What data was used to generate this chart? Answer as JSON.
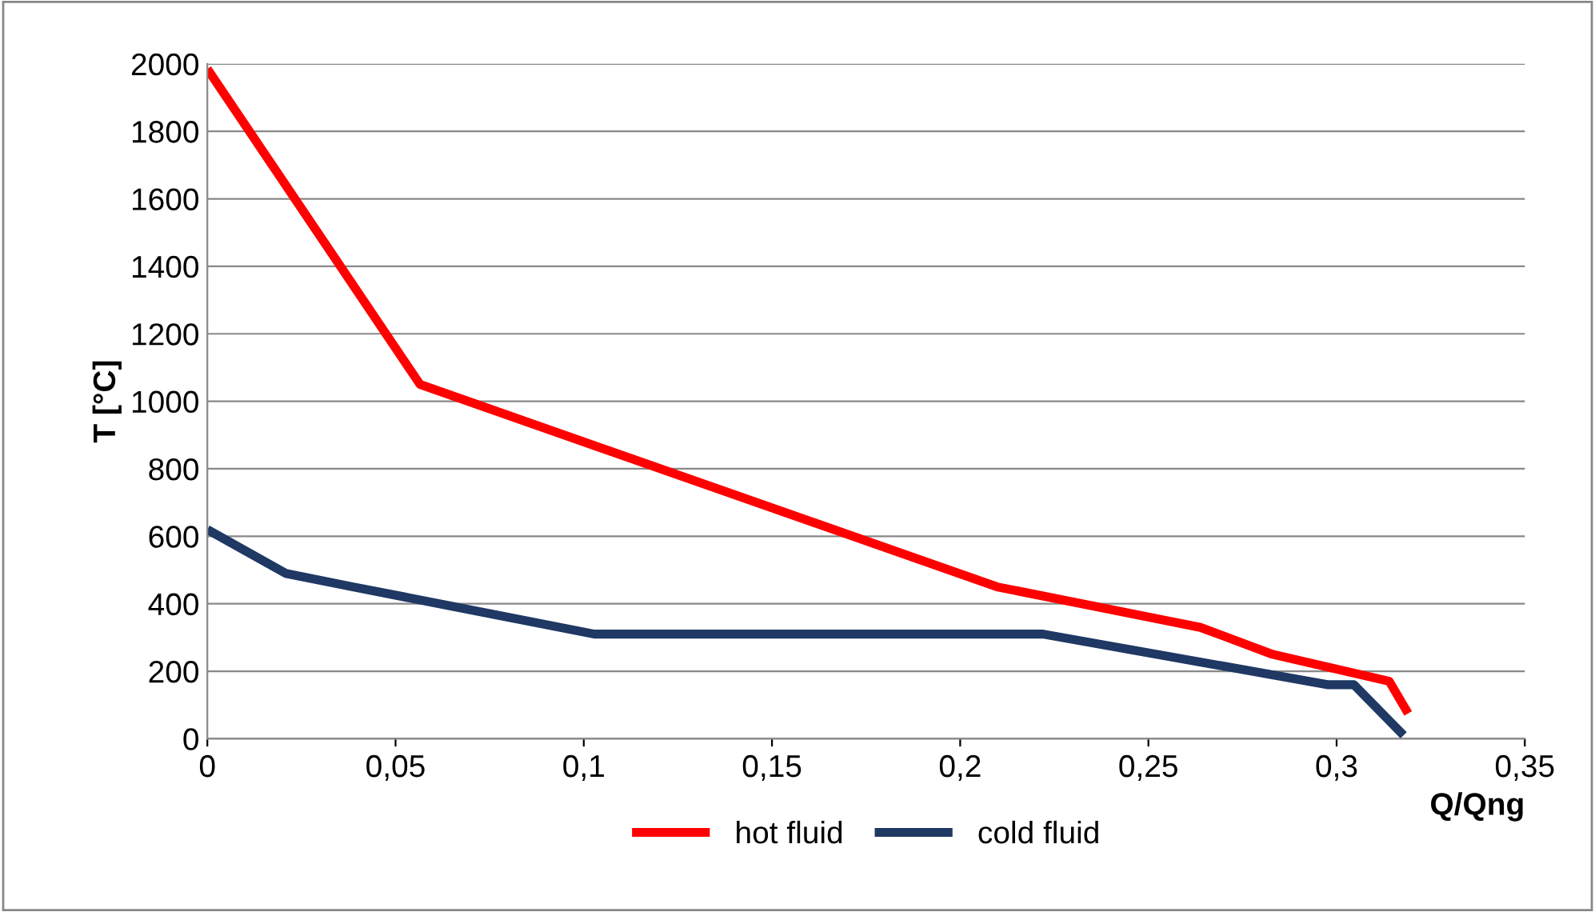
{
  "chart_data": {
    "type": "line",
    "xlabel": "Q/Qng",
    "ylabel": "T [°C]",
    "series": [
      {
        "name": "hot fluid",
        "color": "#ff0000",
        "x": [
          0,
          0.0565,
          0.2098,
          0.2638,
          0.283,
          0.314,
          0.319
        ],
        "values": [
          1985,
          1050,
          450,
          330,
          250,
          170,
          75
        ]
      },
      {
        "name": "cold fluid",
        "color": "#1f3864",
        "x": [
          0,
          0.0208,
          0.0387,
          0.1028,
          0.222,
          0.2978,
          0.3046,
          0.3178
        ],
        "values": [
          620,
          490,
          450,
          310,
          310,
          160,
          160,
          10
        ]
      }
    ],
    "xlim": [
      0,
      0.35
    ],
    "xticks": [
      0,
      {
        "value": 0.05,
        "label": "0,05"
      },
      {
        "value": 0.1,
        "label": "0,1"
      },
      {
        "value": 0.15,
        "label": "0,15"
      },
      {
        "value": 0.2,
        "label": "0,2"
      },
      {
        "value": 0.25,
        "label": "0,25"
      },
      {
        "value": 0.3,
        "label": "0,3"
      },
      {
        "value": 0.35,
        "label": "0,35"
      }
    ],
    "ylim": [
      0,
      2000
    ],
    "yticks": [
      0,
      200,
      400,
      600,
      800,
      1000,
      1200,
      1400,
      1600,
      1800,
      2000
    ],
    "grid": "y",
    "legend": "bottom",
    "marker": "none",
    "line_style": "solid"
  }
}
